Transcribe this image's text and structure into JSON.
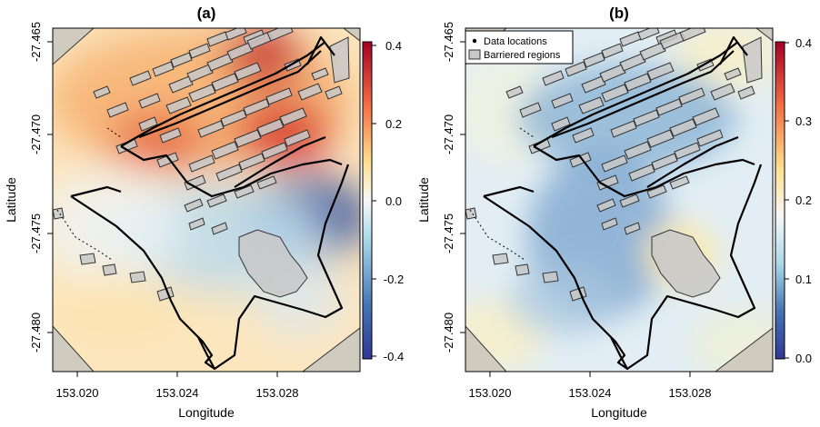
{
  "chart_data": [
    {
      "type": "heatmap",
      "title": "(a)",
      "xlabel": "Longitude",
      "ylabel": "Latitude",
      "x_ticks": [
        "153.020",
        "153.024",
        "153.028"
      ],
      "y_ticks": [
        "-27.465",
        "-27.470",
        "-27.475",
        "-27.480"
      ],
      "xlim": [
        153.0185,
        153.0315
      ],
      "ylim": [
        -27.4825,
        -27.4645
      ],
      "colorbar": {
        "ticks": [
          "0.4",
          "0.2",
          "0.0",
          "-0.2",
          "-0.4"
        ],
        "tick_values": [
          0.4,
          0.2,
          0.0,
          -0.2,
          -0.4
        ],
        "range": [
          -0.45,
          0.45
        ],
        "colors": [
          "#313695",
          "#4575b4",
          "#abd9e9",
          "#f7f7f7",
          "#fee090",
          "#f46d43",
          "#a50026"
        ]
      },
      "hotspots": [
        {
          "lon": 153.0279,
          "lat": -27.4666,
          "value": 0.35
        },
        {
          "lon": 153.0283,
          "lat": -27.47,
          "value": 0.3
        },
        {
          "lon": 153.0245,
          "lat": -27.4702,
          "value": 0.22
        },
        {
          "lon": 153.0288,
          "lat": -27.4752,
          "value": -0.38
        },
        {
          "lon": 153.023,
          "lat": -27.479,
          "value": 0.05
        }
      ]
    },
    {
      "type": "heatmap",
      "title": "(b)",
      "xlabel": "Longitude",
      "ylabel": "Latitude",
      "x_ticks": [
        "153.020",
        "153.024",
        "153.028"
      ],
      "y_ticks": [
        "-27.465",
        "-27.470",
        "-27.475",
        "-27.480"
      ],
      "xlim": [
        153.0185,
        153.0315
      ],
      "ylim": [
        -27.4825,
        -27.4645
      ],
      "colorbar": {
        "ticks": [
          "0.4",
          "0.3",
          "0.2",
          "0.1",
          "0.0"
        ],
        "tick_values": [
          0.4,
          0.3,
          0.2,
          0.1,
          0.0
        ],
        "range": [
          0.0,
          0.4
        ],
        "colors": [
          "#313695",
          "#4575b4",
          "#abd9e9",
          "#f7f7f7",
          "#fee090",
          "#f46d43",
          "#a50026"
        ]
      },
      "legend": {
        "position": "top-left",
        "items": [
          {
            "label": "Data locations",
            "symbol": "dot"
          },
          {
            "label": "Barriered regions",
            "symbol": "grey-box"
          }
        ]
      }
    }
  ]
}
